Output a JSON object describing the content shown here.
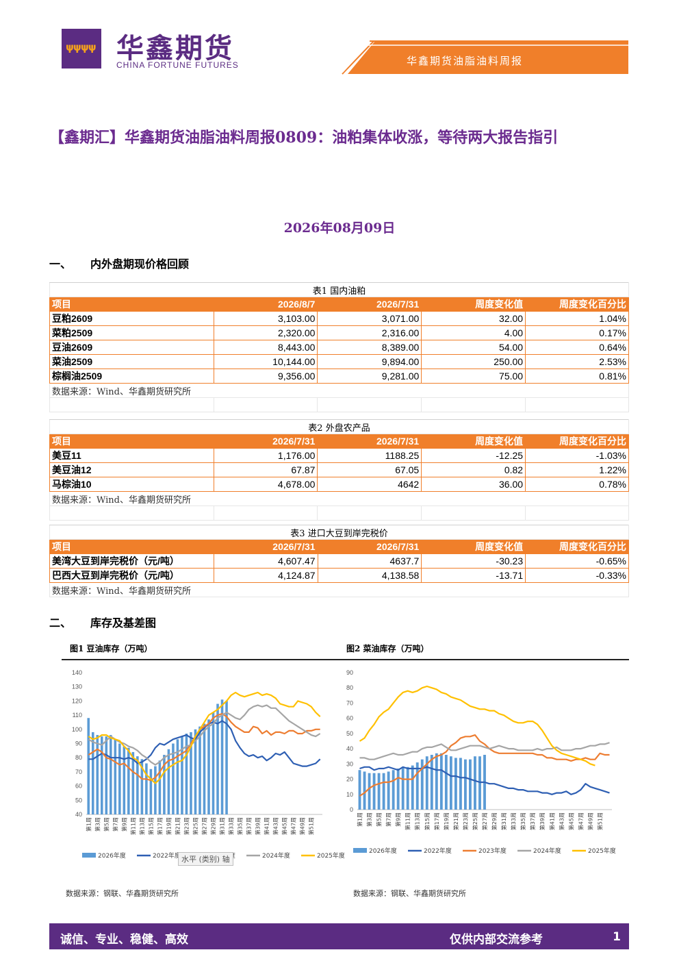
{
  "header": {
    "brand_cn": "华鑫期货",
    "brand_en": "CHINA FORTUNE FUTURES",
    "report_name": "华鑫期货油脂油料周报"
  },
  "title": "【鑫期汇】华鑫期货油脂油料周报0809：油粕集体收涨，等待两大报告指引",
  "date": "2026年08月09日",
  "sections": {
    "s1_num": "一、",
    "s1_title": "内外盘期现价格回顾",
    "s2_num": "二、",
    "s2_title": "库存及基差图"
  },
  "tables": [
    {
      "caption": "表1 国内油粕",
      "headers": [
        "项目",
        "2026/8/7",
        "2026/7/31",
        "周度变化值",
        "周度变化百分比"
      ],
      "rows": [
        [
          "豆粕2609",
          "3,103.00",
          "3,071.00",
          "32.00",
          "1.04%"
        ],
        [
          "菜粕2509",
          "2,320.00",
          "2,316.00",
          "4.00",
          "0.17%"
        ],
        [
          "豆油2609",
          "8,443.00",
          "8,389.00",
          "54.00",
          "0.64%"
        ],
        [
          "菜油2509",
          "10,144.00",
          "9,894.00",
          "250.00",
          "2.53%"
        ],
        [
          "棕榈油2509",
          "9,356.00",
          "9,281.00",
          "75.00",
          "0.81%"
        ]
      ],
      "source": "数据来源：Wind、华鑫期货研究所"
    },
    {
      "caption": "表2 外盘农产品",
      "headers": [
        "项目",
        "2026/7/31",
        "2026/7/31",
        "周度变化值",
        "周度变化百分比"
      ],
      "rows": [
        [
          "美豆11",
          "1,176.00",
          "1188.25",
          "-12.25",
          "-1.03%"
        ],
        [
          "美豆油12",
          "67.87",
          "67.05",
          "0.82",
          "1.22%"
        ],
        [
          "马棕油10",
          "4,678.00",
          "4642",
          "36.00",
          "0.78%"
        ]
      ],
      "source": "数据来源：Wind、华鑫期货研究所"
    },
    {
      "caption": "表3 进口大豆到岸完税价",
      "headers": [
        "项目",
        "2026/7/31",
        "2026/7/31",
        "周度变化值",
        "周度变化百分比"
      ],
      "rows": [
        [
          "美湾大豆到岸完税价（元/吨）",
          "4,607.47",
          "4637.7",
          "-30.23",
          "-0.65%"
        ],
        [
          "巴西大豆到岸完税价（元/吨）",
          "4,124.87",
          "4,138.58",
          "-13.71",
          "-0.33%"
        ]
      ],
      "source": "数据来源：Wind、华鑫期货研究所"
    }
  ],
  "figures": [
    {
      "title": "图1 豆油库存（万吨）",
      "source": "数据来源：钢联、华鑫期货研究所",
      "tooltip": "水平 (类别) 轴"
    },
    {
      "title": "图2 菜油库存（万吨）",
      "source": "数据来源：钢联、华鑫期货研究所"
    }
  ],
  "chart_data": [
    {
      "type": "line",
      "yticks": [
        "40",
        "50",
        "60",
        "70",
        "80",
        "90",
        "100",
        "110",
        "120",
        "130",
        "140"
      ],
      "ylim": [
        40,
        140
      ],
      "xticks": [
        "第1周",
        "第3周",
        "第5周",
        "第7周",
        "第9周",
        "第11周",
        "第13周",
        "第15周",
        "第17周",
        "第19周",
        "第21周",
        "第23周",
        "第25周",
        "第27周",
        "第29周",
        "第31周",
        "第33周",
        "第35周",
        "第37周",
        "第39周",
        "第41周",
        "第43周",
        "第45周",
        "第47周",
        "第49周",
        "第51周"
      ],
      "colors": {
        "2026": "#5b9bd5",
        "2022": "#2e5fb3",
        "2023": "#ed7d31",
        "2024": "#a5a5a5",
        "2025": "#ffc000"
      },
      "series": [
        {
          "name": "2026年度",
          "kind": "bar",
          "values": [
            108,
            98,
            96,
            95,
            95,
            96,
            93,
            90,
            88,
            87,
            84,
            81,
            79,
            76,
            72,
            74,
            78,
            82,
            86,
            90,
            93,
            95,
            97,
            98,
            100,
            102,
            104,
            107,
            112,
            118,
            121,
            120
          ]
        },
        {
          "name": "2022年度",
          "kind": "line",
          "values": [
            79,
            79,
            81,
            83,
            82,
            80,
            80,
            80,
            79,
            80,
            79,
            76,
            77,
            79,
            82,
            87,
            90,
            89,
            91,
            93,
            94,
            95,
            96,
            94,
            93,
            98,
            101,
            104,
            105,
            104,
            106,
            104,
            100,
            92,
            87,
            83,
            81,
            82,
            80,
            81,
            78,
            80,
            83,
            82,
            84,
            80,
            76,
            75,
            74,
            74,
            75,
            76,
            79
          ]
        },
        {
          "name": "2023年度",
          "kind": "line",
          "values": [
            82,
            84,
            86,
            84,
            80,
            79,
            77,
            75,
            76,
            73,
            70,
            68,
            65,
            65,
            64,
            66,
            70,
            75,
            78,
            79,
            81,
            83,
            85,
            90,
            95,
            100,
            102,
            104,
            108,
            110,
            111,
            109,
            105,
            102,
            100,
            98,
            98,
            102,
            101,
            97,
            99,
            96,
            98,
            98,
            97,
            99,
            99,
            97,
            97,
            99,
            99,
            100,
            100
          ]
        },
        {
          "name": "2024年度",
          "kind": "line",
          "values": [
            93,
            91,
            90,
            89,
            92,
            95,
            93,
            91,
            90,
            88,
            87,
            85,
            82,
            80,
            77,
            75,
            77,
            80,
            82,
            83,
            84,
            86,
            88,
            89,
            92,
            95,
            99,
            102,
            104,
            108,
            110,
            112,
            110,
            108,
            107,
            110,
            114,
            116,
            117,
            116,
            117,
            115,
            115,
            112,
            109,
            106,
            104,
            102,
            100,
            98,
            96,
            95,
            97
          ]
        },
        {
          "name": "2025年度",
          "kind": "line",
          "values": [
            95,
            93,
            94,
            96,
            96,
            94,
            93,
            92,
            88,
            85,
            80,
            78,
            73,
            68,
            65,
            62,
            65,
            70,
            73,
            75,
            77,
            78,
            82,
            88,
            95,
            100,
            105,
            110,
            112,
            114,
            117,
            120,
            124,
            126,
            124,
            123,
            124,
            125,
            126,
            124,
            125,
            124,
            122,
            118,
            117,
            116,
            116,
            120,
            119,
            118,
            116,
            112,
            109
          ]
        }
      ]
    },
    {
      "type": "line",
      "yticks": [
        "0",
        "10",
        "20",
        "30",
        "40",
        "50",
        "60",
        "70",
        "80",
        "90"
      ],
      "ylim": [
        0,
        90
      ],
      "xticks": [
        "第1周",
        "第3周",
        "第5周",
        "第7周",
        "第9周",
        "第11周",
        "第13周",
        "第15周",
        "第17周",
        "第19周",
        "第21周",
        "第23周",
        "第25周",
        "第27周",
        "第29周",
        "第31周",
        "第33周",
        "第35周",
        "第37周",
        "第39周",
        "第41周",
        "第43周",
        "第45周",
        "第47周",
        "第49周",
        "第51周"
      ],
      "colors": {
        "2026": "#5b9bd5",
        "2022": "#2e5fb3",
        "2023": "#ed7d31",
        "2024": "#a5a5a5",
        "2025": "#ffc000"
      },
      "series": [
        {
          "name": "2026年度",
          "kind": "bar",
          "values": [
            26,
            25,
            24,
            24,
            24,
            24,
            25,
            26,
            27,
            28,
            28,
            29,
            31,
            33,
            35,
            36,
            37,
            37,
            36,
            35,
            34,
            34,
            33,
            33,
            35,
            35,
            36
          ]
        },
        {
          "name": "2022年度",
          "kind": "line",
          "values": [
            27,
            28,
            28,
            26,
            27,
            27,
            28,
            27,
            26,
            28,
            27,
            27,
            27,
            27,
            28,
            27,
            26,
            26,
            24,
            22,
            22,
            21,
            21,
            20,
            19,
            18,
            18,
            17,
            17,
            16,
            15,
            14,
            14,
            13,
            13,
            12,
            12,
            12,
            11,
            11,
            10,
            11,
            11,
            12,
            10,
            11,
            13,
            17,
            15,
            14,
            13,
            12,
            11
          ]
        },
        {
          "name": "2023年度",
          "kind": "line",
          "values": [
            9,
            11,
            14,
            16,
            17,
            18,
            18,
            19,
            21,
            20,
            20,
            20,
            24,
            27,
            30,
            33,
            35,
            36,
            38,
            42,
            44,
            47,
            48,
            48,
            49,
            45,
            43,
            40,
            38,
            37,
            37,
            37,
            37,
            37,
            37,
            37,
            37,
            36,
            36,
            34,
            34,
            33,
            33,
            33,
            32,
            33,
            33,
            34,
            33,
            33,
            37,
            36,
            36
          ]
        },
        {
          "name": "2024年度",
          "kind": "line",
          "values": [
            34,
            34,
            33,
            33,
            34,
            35,
            36,
            37,
            36,
            36,
            37,
            38,
            38,
            40,
            41,
            41,
            42,
            43,
            41,
            39,
            39,
            40,
            41,
            42,
            42,
            42,
            41,
            40,
            41,
            42,
            41,
            40,
            40,
            39,
            39,
            39,
            39,
            40,
            39,
            40,
            40,
            41,
            39,
            39,
            39,
            40,
            40,
            41,
            42,
            42,
            43,
            43,
            44
          ]
        },
        {
          "name": "2025年度",
          "kind": "line",
          "values": [
            45,
            47,
            52,
            56,
            61,
            64,
            66,
            70,
            74,
            77,
            78,
            77,
            78,
            80,
            81,
            80,
            79,
            77,
            76,
            74,
            73,
            72,
            70,
            68,
            67,
            66,
            66,
            65,
            65,
            63,
            62,
            60,
            58,
            57,
            57,
            58,
            58,
            56,
            52,
            47,
            42,
            39,
            37,
            36,
            35,
            34,
            33,
            32,
            30,
            29
          ]
        }
      ]
    }
  ],
  "footer": {
    "left": "诚信、专业、稳健、高效",
    "right": "仅供内部交流参考",
    "page": "1"
  }
}
